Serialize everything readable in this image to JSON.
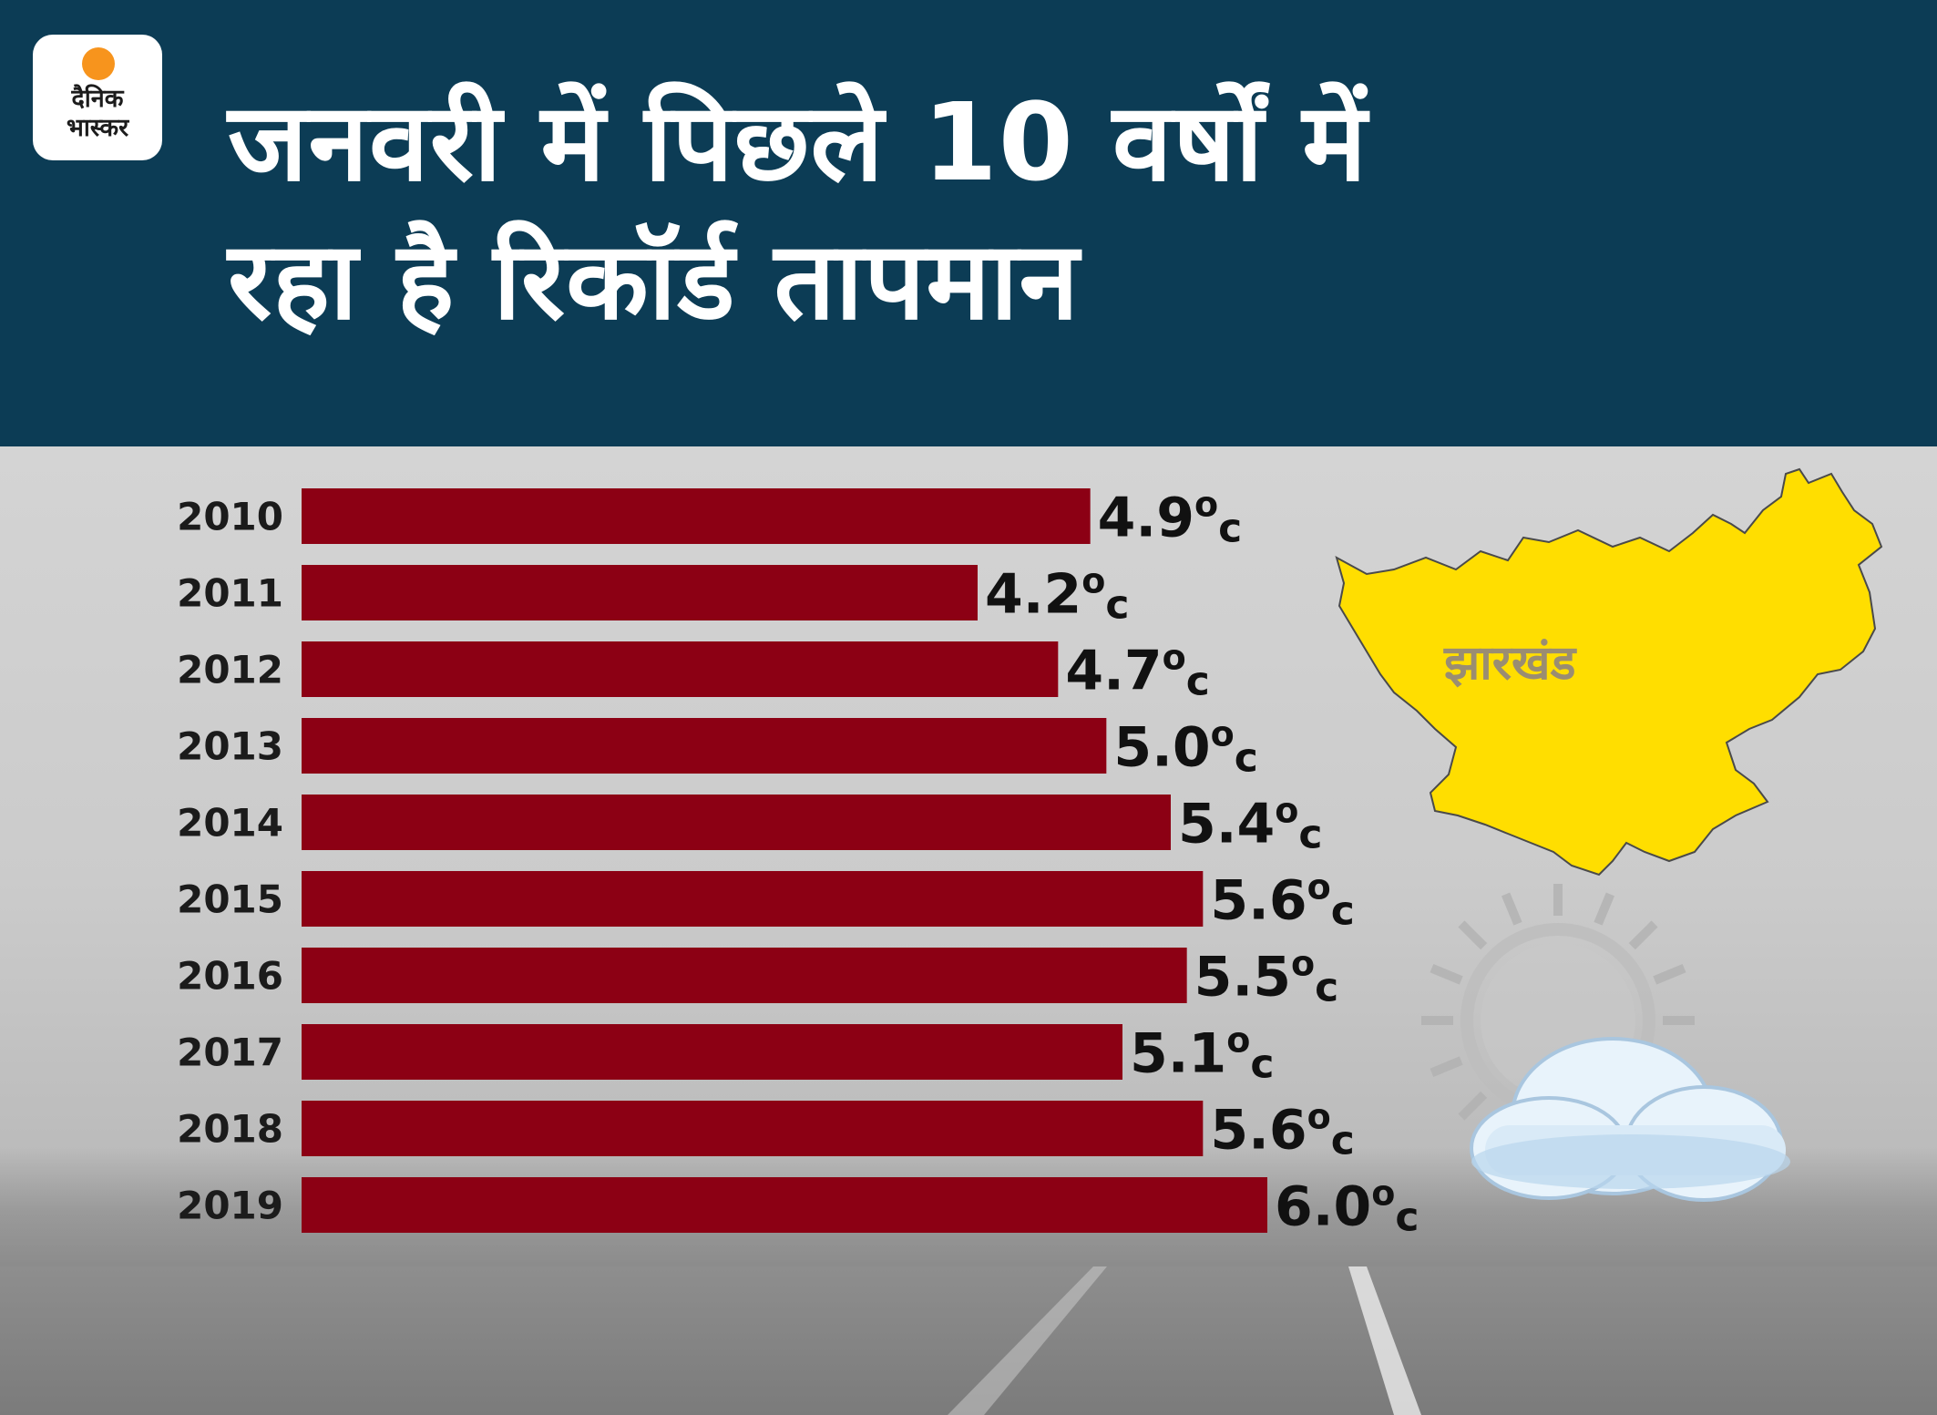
{
  "header": {
    "title_line_1": "जनवरी में पिछले 10 वर्षों में",
    "title_line_2": "रहा है रिकॉर्ड तापमान",
    "background": "#0c3c55"
  },
  "logo": {
    "line_1": "दैनिक",
    "line_2": "भास्कर",
    "sun_color": "#f7941d"
  },
  "map": {
    "label": "झारखंड",
    "fill": "#ffde00"
  },
  "weather_icon": "sun-behind-cloud-icon",
  "chart_data": {
    "type": "bar",
    "orientation": "horizontal",
    "categories": [
      "2010",
      "2011",
      "2012",
      "2013",
      "2014",
      "2015",
      "2016",
      "2017",
      "2018",
      "2019"
    ],
    "values": [
      4.9,
      4.2,
      4.7,
      5.0,
      5.4,
      5.6,
      5.5,
      5.1,
      5.6,
      6.0
    ],
    "value_labels": [
      "4.9",
      "4.2",
      "4.7",
      "5.0",
      "5.4",
      "5.6",
      "5.5",
      "5.1",
      "5.6",
      "6.0"
    ],
    "unit_sup": "o",
    "unit": "c",
    "bar_color": "#8c0014",
    "xlim": [
      0,
      6.0
    ],
    "grid": false,
    "legend": "none"
  }
}
